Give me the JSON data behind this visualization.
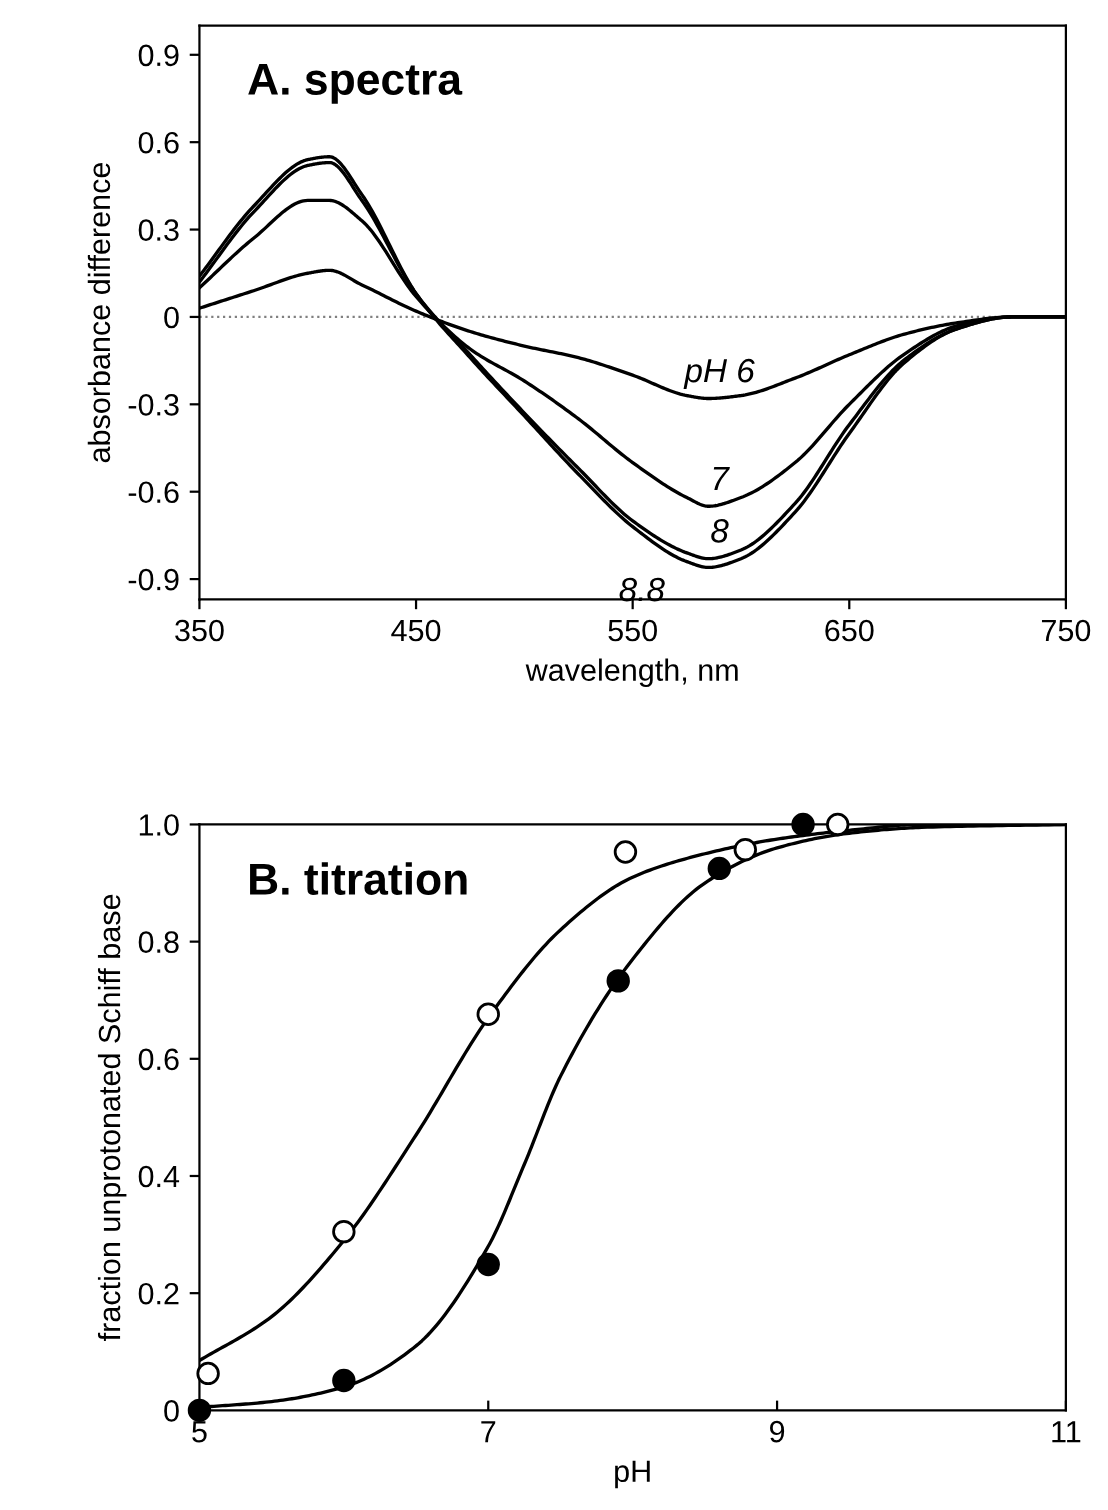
{
  "chart_data": [
    {
      "type": "line",
      "title": "A. spectra",
      "xlabel": "wavelength, nm",
      "ylabel": "absorbance difference",
      "x": [
        350,
        375,
        400,
        410,
        425,
        450,
        475,
        500,
        525,
        550,
        575,
        585,
        600,
        625,
        650,
        675,
        700,
        725,
        750
      ],
      "series": [
        {
          "color": "#000000",
          "values": [
            0.03,
            0.09,
            0.15,
            0.16,
            0.11,
            0.02,
            -0.05,
            -0.1,
            -0.14,
            -0.2,
            -0.27,
            -0.28,
            -0.27,
            -0.21,
            -0.13,
            -0.06,
            -0.02,
            0,
            0
          ]
        },
        {
          "color": "#000000",
          "values": [
            0.1,
            0.27,
            0.4,
            0.4,
            0.33,
            0.07,
            -0.11,
            -0.22,
            -0.35,
            -0.5,
            -0.62,
            -0.65,
            -0.62,
            -0.5,
            -0.3,
            -0.13,
            -0.03,
            0,
            0
          ]
        },
        {
          "color": "#000000",
          "values": [
            0.12,
            0.36,
            0.52,
            0.53,
            0.4,
            0.08,
            -0.13,
            -0.33,
            -0.52,
            -0.7,
            -0.81,
            -0.83,
            -0.8,
            -0.64,
            -0.37,
            -0.15,
            -0.04,
            0,
            0
          ]
        },
        {
          "color": "#000000",
          "values": [
            0.14,
            0.38,
            0.54,
            0.55,
            0.42,
            0.08,
            -0.14,
            -0.34,
            -0.54,
            -0.72,
            -0.84,
            -0.86,
            -0.83,
            -0.67,
            -0.4,
            -0.16,
            -0.04,
            0,
            0
          ]
        }
      ],
      "ref_lines": [
        {
          "axis": "y",
          "value": 0,
          "color": "#808080",
          "line_style": "dotted"
        }
      ],
      "annotations": [
        "pH 6",
        "7",
        "8",
        "8.8"
      ],
      "xlim": [
        350,
        750
      ],
      "xticks": [
        350,
        450,
        550,
        650,
        750
      ],
      "ylim": [
        -0.97,
        1.0
      ],
      "yticks": [
        -0.9,
        -0.6,
        -0.3,
        0,
        0.3,
        0.6,
        0.9
      ],
      "grid": false,
      "legend": false,
      "line_style": "solid"
    },
    {
      "type": "scatter",
      "title": "B. titration",
      "xlabel": "pH",
      "ylabel": "fraction unprotonated Schiff base",
      "series": [
        {
          "type": "line",
          "color": "#000000",
          "x": [
            5,
            5.5,
            6,
            6.5,
            7,
            7.5,
            8,
            8.5,
            9,
            9.5,
            10,
            11
          ],
          "values": [
            0.085,
            0.16,
            0.29,
            0.47,
            0.67,
            0.82,
            0.91,
            0.95,
            0.975,
            0.99,
            1.0,
            1.0
          ]
        },
        {
          "type": "line",
          "color": "#000000",
          "x": [
            5,
            5.5,
            6,
            6.5,
            7,
            7.25,
            7.5,
            8,
            8.5,
            9,
            9.5,
            10,
            11
          ],
          "values": [
            0.005,
            0.015,
            0.04,
            0.11,
            0.28,
            0.42,
            0.57,
            0.77,
            0.9,
            0.96,
            0.985,
            0.995,
            1.0
          ]
        },
        {
          "type": "scatter",
          "marker": "circle",
          "color": "#ffffff",
          "x": [
            5.06,
            6.0,
            7.0,
            7.95,
            8.78,
            9.42
          ],
          "values": [
            0.063,
            0.305,
            0.676,
            0.953,
            0.957,
            1.0
          ]
        },
        {
          "type": "scatter",
          "marker": "circle",
          "color": "#000000",
          "x": [
            5.0,
            6.0,
            7.0,
            7.9,
            8.6,
            9.18
          ],
          "values": [
            0.0,
            0.051,
            0.249,
            0.733,
            0.925,
            1.0
          ]
        }
      ],
      "xlim": [
        5,
        11
      ],
      "xticks": [
        5,
        7,
        9,
        11
      ],
      "ylim": [
        0,
        1.0
      ],
      "yticks": [
        0,
        0.2,
        0.4,
        0.6,
        0.8,
        {
          "value": 1.0,
          "label": "1.0"
        }
      ],
      "grid": false,
      "legend": false
    }
  ]
}
